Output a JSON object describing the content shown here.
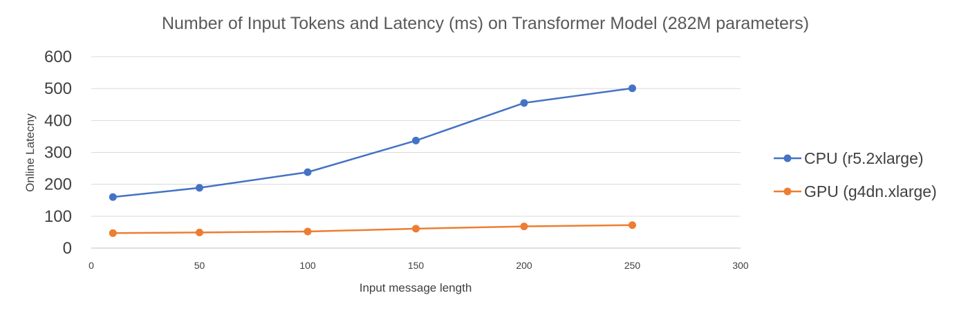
{
  "chart_data": {
    "type": "line",
    "title": "Number of Input Tokens and Latency (ms) on Transformer Model (282M parameters)",
    "xlabel": "Input message length",
    "ylabel": "Online Latecny",
    "xlim": [
      0,
      300
    ],
    "ylim": [
      0,
      600
    ],
    "xticks": [
      0,
      50,
      100,
      150,
      200,
      250,
      300
    ],
    "yticks": [
      0,
      100,
      200,
      300,
      400,
      500,
      600
    ],
    "grid": "horizontal",
    "legend_position": "right",
    "series": [
      {
        "name": "CPU (r5.2xlarge)",
        "color": "#4472c4",
        "x": [
          10,
          50,
          100,
          150,
          200,
          250
        ],
        "y": [
          160,
          189,
          238,
          337,
          455,
          501
        ]
      },
      {
        "name": "GPU (g4dn.xlarge)",
        "color": "#ed7d31",
        "x": [
          10,
          50,
          100,
          150,
          200,
          250
        ],
        "y": [
          47,
          49,
          52,
          61,
          68,
          72
        ]
      }
    ]
  }
}
